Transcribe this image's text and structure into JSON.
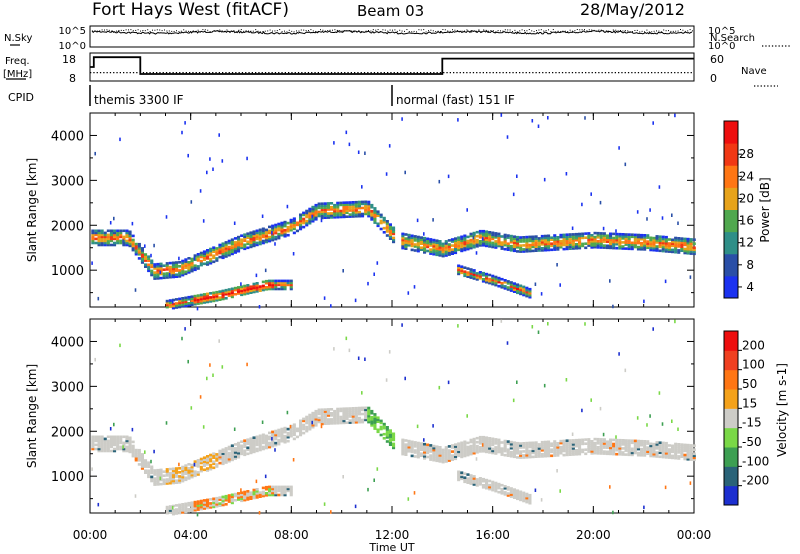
{
  "header": {
    "station": "Fort Hays West (fitACF)",
    "beam": "Beam 03",
    "date": "28/May/2012"
  },
  "status_panels": {
    "noise": {
      "left_label": "N.Sky",
      "right_label": "N.Search",
      "left_ticks": [
        "10^5",
        "10^0"
      ],
      "right_ticks": [
        "10^5",
        "10^0"
      ]
    },
    "freq": {
      "left_label_1": "Freq.",
      "left_label_2": "[MHz]",
      "right_label": "Nave",
      "left_ticks": [
        "18",
        "8"
      ],
      "right_ticks": [
        "60",
        "0"
      ],
      "freq_steps": [
        {
          "t": 0.0,
          "v": 13.0
        },
        {
          "t": 0.15,
          "v": 16.5
        },
        {
          "t": 2.0,
          "v": 10.5
        },
        {
          "t": 14.0,
          "v": 16.0
        },
        {
          "t": 24.0,
          "v": 16.0
        }
      ],
      "nave_steps": [
        {
          "t": 0.0,
          "v": 18
        },
        {
          "t": 24.0,
          "v": 18
        }
      ]
    },
    "cpid": {
      "label": "CPID",
      "modes": [
        {
          "start_hour": 0,
          "text": "themis 3300 IF"
        },
        {
          "start_hour": 12,
          "text": "normal (fast) 151 IF"
        }
      ]
    }
  },
  "chart_data": [
    {
      "type": "heatmap",
      "name": "power",
      "xlabel": "",
      "ylabel": "Slant Range [km]",
      "xlim": [
        0,
        24
      ],
      "ylim": [
        180,
        4500
      ],
      "yticks": [
        1000,
        2000,
        3000,
        4000
      ],
      "colorbar": {
        "label": "Power [dB]",
        "tick_labels": [
          "4",
          "8",
          "12",
          "16",
          "20",
          "24",
          "28"
        ],
        "colors": [
          "#1b32f0",
          "#2a4fa7",
          "#2f8f88",
          "#50a84f",
          "#e7a31b",
          "#ff7614",
          "#f13814",
          "#ee0e0e"
        ]
      },
      "features": [
        {
          "label": "main echo band",
          "points": [
            [
              0,
              1750
            ],
            [
              1.5,
              1750
            ],
            [
              2.5,
              1000
            ],
            [
              3.5,
              1050
            ],
            [
              6,
              1650
            ],
            [
              8,
              2000
            ],
            [
              9,
              2350
            ],
            [
              11,
              2400
            ],
            [
              12.2,
              1700
            ],
            [
              14,
              1500
            ],
            [
              15.5,
              1750
            ],
            [
              17,
              1600
            ],
            [
              20,
              1700
            ],
            [
              22,
              1650
            ],
            [
              24,
              1550
            ]
          ]
        },
        {
          "label": "near-range echoes",
          "points": [
            [
              3,
              250
            ],
            [
              5,
              450
            ],
            [
              7,
              700
            ],
            [
              8,
              700
            ]
          ]
        },
        {
          "label": "descending echoes",
          "points": [
            [
              14.5,
              1050
            ],
            [
              16,
              800
            ],
            [
              17,
              600
            ],
            [
              17.5,
              500
            ]
          ]
        }
      ]
    },
    {
      "type": "heatmap",
      "name": "velocity",
      "xlabel": "Time UT",
      "ylabel": "Slant Range [km]",
      "xlim": [
        0,
        24
      ],
      "ylim": [
        180,
        4500
      ],
      "x_tick_labels": [
        "00:00",
        "04:00",
        "08:00",
        "12:00",
        "16:00",
        "20:00",
        "00:00"
      ],
      "yticks": [
        1000,
        2000,
        3000,
        4000
      ],
      "colorbar": {
        "label": "Velocity [m s-1]",
        "tick_labels": [
          "200",
          "100",
          "50",
          "15",
          "-15",
          "-50",
          "-100",
          "-200"
        ],
        "colors": [
          "#1c2fd0",
          "#2a6378",
          "#3d9f52",
          "#7ad847",
          "#cdccc7",
          "#f4a21b",
          "#ff7614",
          "#f04020",
          "#ee0e0e"
        ]
      }
    }
  ]
}
